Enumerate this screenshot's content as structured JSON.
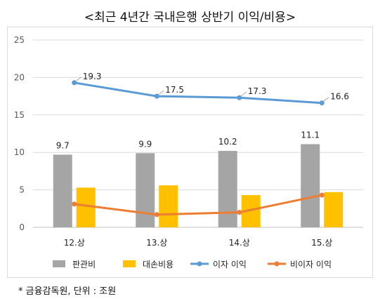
{
  "title": "<최근 4년간 국내은행 상반기 이익/비용>",
  "source": "* 금융감독원, 단위 : 조원",
  "chart_data": {
    "type": "bar",
    "categories": [
      "12.상",
      "13.상",
      "14.상",
      "15.상"
    ],
    "ylim": [
      0,
      25
    ],
    "yticks": [
      0,
      5,
      10,
      15,
      20,
      25
    ],
    "grid": true,
    "legend": "bottom",
    "series": [
      {
        "name": "판관비",
        "kind": "bar",
        "color": "#a5a5a5",
        "values": [
          9.7,
          9.9,
          10.2,
          11.1
        ],
        "labels": [
          "9.7",
          "9.9",
          "10.2",
          "11.1"
        ]
      },
      {
        "name": "대손비용",
        "kind": "bar",
        "color": "#ffc000",
        "values": [
          5.3,
          5.6,
          4.3,
          4.7
        ]
      },
      {
        "name": "이자 이익",
        "kind": "line",
        "color": "#5b9bd5",
        "values": [
          19.3,
          17.5,
          17.3,
          16.6
        ],
        "labels": [
          "19.3",
          "17.5",
          "17.3",
          "16.6"
        ]
      },
      {
        "name": "비이자 이익",
        "kind": "line",
        "color": "#ed7d31",
        "values": [
          3.1,
          1.7,
          2.0,
          4.3
        ]
      }
    ]
  }
}
